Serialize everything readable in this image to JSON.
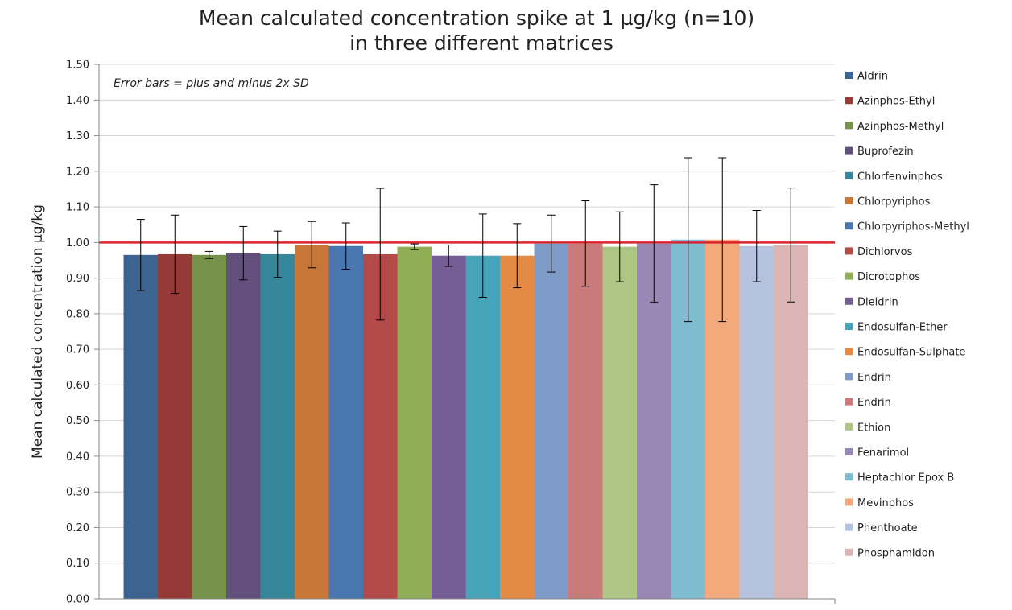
{
  "chart_data": {
    "type": "bar",
    "title": "Mean calculated concentration spike at 1 µg/kg (n=10)",
    "subtitle": "in three different matrices",
    "xlabel": "",
    "ylabel": "Mean calculated concentration µg/kg",
    "ylim": [
      0,
      1.5
    ],
    "ytick_step": 0.1,
    "yticks": [
      "0.00",
      "0.10",
      "0.20",
      "0.30",
      "0.40",
      "0.50",
      "0.60",
      "0.70",
      "0.80",
      "0.90",
      "1.00",
      "1.10",
      "1.20",
      "1.30",
      "1.40",
      "1.50"
    ],
    "grid": true,
    "legend_position": "right",
    "annotation": "Error bars = plus and minus 2x SD",
    "reference_line": {
      "value": 1.0,
      "color": "#d9272e"
    },
    "series": [
      {
        "name": "Aldrin",
        "value": 0.965,
        "err": 0.1,
        "color": "#3d6491"
      },
      {
        "name": "Azinphos-Ethyl",
        "value": 0.967,
        "err": 0.11,
        "color": "#963a38"
      },
      {
        "name": "Azinphos-Methyl",
        "value": 0.965,
        "err": 0.01,
        "color": "#76924a"
      },
      {
        "name": "Buprofezin",
        "value": 0.97,
        "err": 0.075,
        "color": "#624f7c"
      },
      {
        "name": "Chlorfenvinphos",
        "value": 0.967,
        "err": 0.065,
        "color": "#38869a"
      },
      {
        "name": "Chlorpyriphos",
        "value": 0.994,
        "err": 0.065,
        "color": "#c77636"
      },
      {
        "name": "Chlorpyriphos-Methyl",
        "value": 0.99,
        "err": 0.065,
        "color": "#4a76b0"
      },
      {
        "name": "Dichlorvos",
        "value": 0.967,
        "err": 0.185,
        "color": "#b24a47"
      },
      {
        "name": "Dicrotophos",
        "value": 0.988,
        "err": 0.008,
        "color": "#8fae55"
      },
      {
        "name": "Dieldrin",
        "value": 0.963,
        "err": 0.03,
        "color": "#755e95"
      },
      {
        "name": "Endosulfan-Ether",
        "value": 0.963,
        "err": 0.117,
        "color": "#46a3b8"
      },
      {
        "name": "Endosulfan-Sulphate",
        "value": 0.963,
        "err": 0.09,
        "color": "#e58a45"
      },
      {
        "name": "Endrin",
        "value": 0.997,
        "err": 0.08,
        "color": "#7f9cc8"
      },
      {
        "name": "Endrin",
        "value": 0.997,
        "err": 0.12,
        "color": "#c87b7a"
      },
      {
        "name": "Ethion",
        "value": 0.988,
        "err": 0.098,
        "color": "#adc686"
      },
      {
        "name": "Fenarimol",
        "value": 0.997,
        "err": 0.165,
        "color": "#9988b3"
      },
      {
        "name": "Heptachlor Epox B",
        "value": 1.008,
        "err": 0.23,
        "color": "#7ebcd1"
      },
      {
        "name": "Mevinphos",
        "value": 1.008,
        "err": 0.23,
        "color": "#f2a97b"
      },
      {
        "name": "Phenthoate",
        "value": 0.99,
        "err": 0.1,
        "color": "#b5c3df"
      },
      {
        "name": "Phosphamidon",
        "value": 0.993,
        "err": 0.16,
        "color": "#dbb5b4"
      }
    ]
  }
}
